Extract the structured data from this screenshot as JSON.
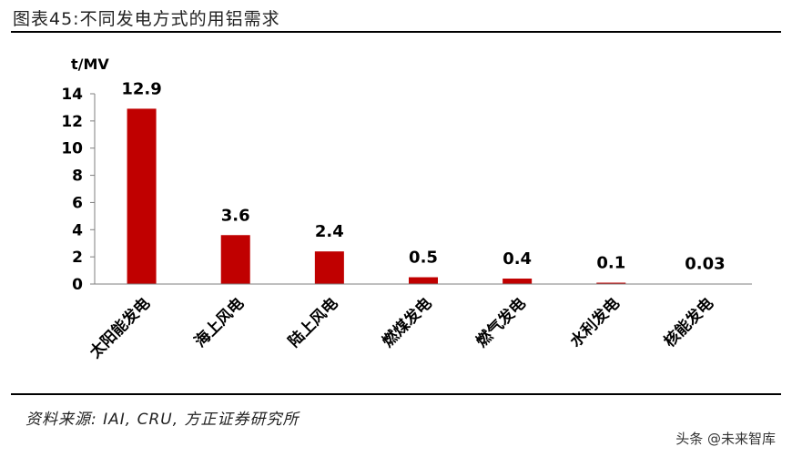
{
  "header": {
    "title": "图表45:不同发电方式的用铝需求"
  },
  "footer": {
    "source": "资料来源: IAI, CRU, 方正证券研究所"
  },
  "watermark": "头条 @未来智库",
  "chart_data": {
    "type": "bar",
    "ylabel": "t/MV",
    "categories": [
      "太阳能发电",
      "海上风电",
      "陆上风电",
      "燃煤发电",
      "燃气发电",
      "水利发电",
      "核能发电"
    ],
    "values": [
      12.9,
      3.6,
      2.4,
      0.5,
      0.4,
      0.1,
      0.03
    ],
    "value_labels": [
      "12.9",
      "3.6",
      "2.4",
      "0.5",
      "0.4",
      "0.1",
      "0.03"
    ],
    "yticks": [
      "0",
      "2",
      "4",
      "6",
      "8",
      "10",
      "12",
      "14"
    ],
    "ylim": [
      0,
      14
    ],
    "bar_color": "#C00000",
    "grid": false,
    "legend": "none"
  }
}
